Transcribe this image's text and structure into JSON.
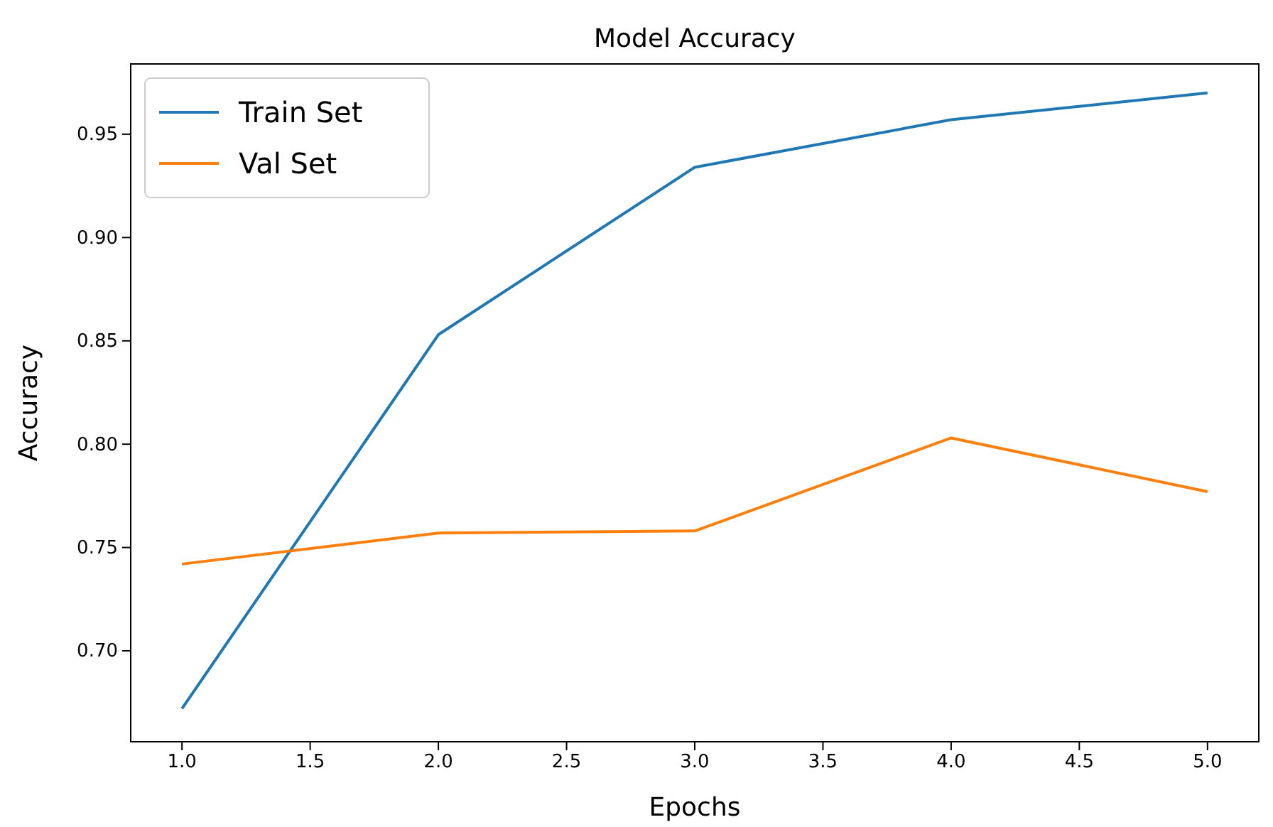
{
  "chart_data": {
    "type": "line",
    "title": "Model Accuracy",
    "xlabel": "Epochs",
    "ylabel": "Accuracy",
    "x": [
      1,
      2,
      3,
      4,
      5
    ],
    "series": [
      {
        "name": "Train Set",
        "color": "#1f77b4",
        "values": [
          0.672,
          0.853,
          0.934,
          0.957,
          0.97
        ]
      },
      {
        "name": "Val Set",
        "color": "#ff7f0e",
        "values": [
          0.742,
          0.757,
          0.758,
          0.803,
          0.777
        ]
      }
    ],
    "xlim": [
      0.8,
      5.2
    ],
    "ylim": [
      0.656,
      0.984
    ],
    "xticks": [
      {
        "value": 1,
        "label": "1.0"
      },
      {
        "value": 1.5,
        "label": "1.5"
      },
      {
        "value": 2,
        "label": "2.0"
      },
      {
        "value": 2.5,
        "label": "2.5"
      },
      {
        "value": 3,
        "label": "3.0"
      },
      {
        "value": 3.5,
        "label": "3.5"
      },
      {
        "value": 4,
        "label": "4.0"
      },
      {
        "value": 4.5,
        "label": "4.5"
      },
      {
        "value": 5,
        "label": "5.0"
      }
    ],
    "yticks": [
      {
        "value": 0.7,
        "label": "0.70"
      },
      {
        "value": 0.75,
        "label": "0.75"
      },
      {
        "value": 0.8,
        "label": "0.80"
      },
      {
        "value": 0.85,
        "label": "0.85"
      },
      {
        "value": 0.9,
        "label": "0.90"
      },
      {
        "value": 0.95,
        "label": "0.95"
      }
    ],
    "legend": "top left",
    "line_style": "solid"
  }
}
